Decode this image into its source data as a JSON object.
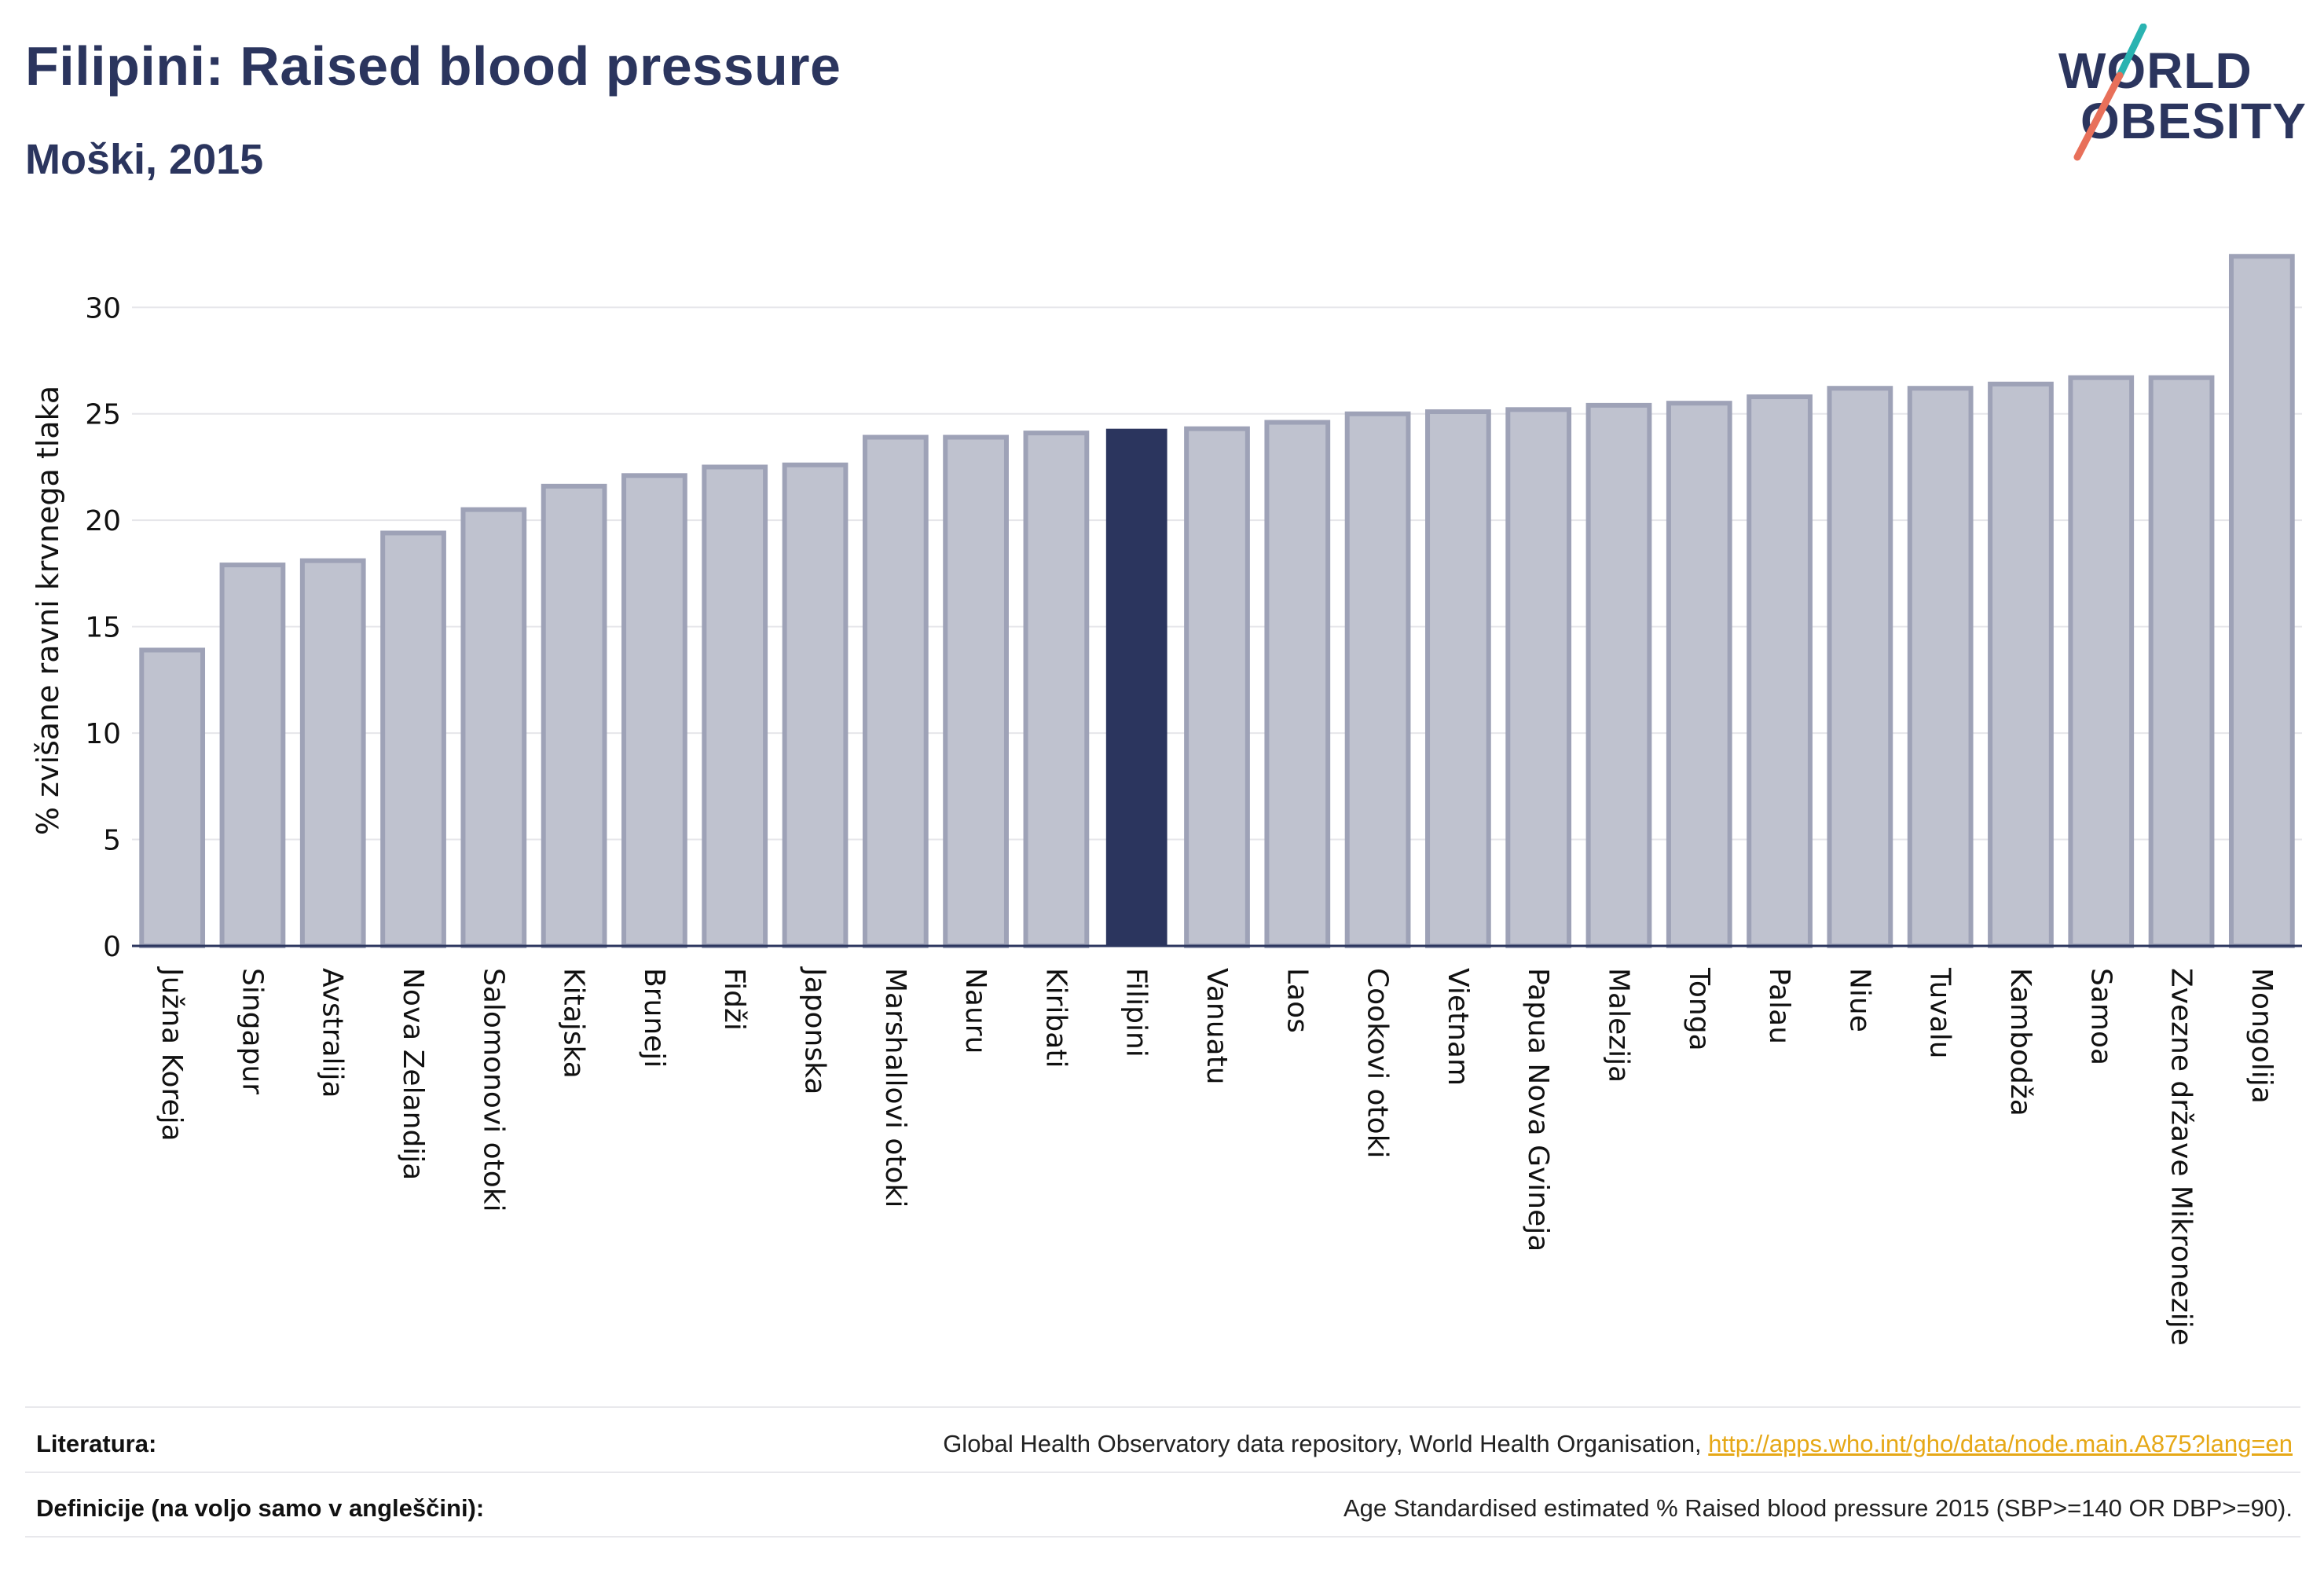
{
  "header": {
    "title": "Filipini: Raised blood pressure",
    "subtitle": "Moški, 2015"
  },
  "logo": {
    "line1": "WORLD",
    "line2": "OBESITY",
    "colors": {
      "text": "#2b355e",
      "slash_top": "#2ab3b1",
      "slash_bottom": "#e8705a"
    }
  },
  "chart_data": {
    "type": "bar",
    "ylabel": "% zvišane ravni krvnega tlaka",
    "xlabel": "",
    "ylim": [
      0,
      33
    ],
    "yticks": [
      0,
      5,
      10,
      15,
      20,
      25,
      30
    ],
    "grid": true,
    "highlight": "Filipini",
    "colors": {
      "bar": "#bfc2cf",
      "bar_border": "#9ea2b7",
      "highlight": "#2b355e",
      "axis": "#2b355e",
      "grid": "#e6e6ea"
    },
    "categories": [
      "Južna Koreja",
      "Singapur",
      "Avstralija",
      "Nova Zelandija",
      "Salomonovi otoki",
      "Kitajska",
      "Bruneji",
      "Fidži",
      "Japonska",
      "Marshallovi otoki",
      "Nauru",
      "Kiribati",
      "Filipini",
      "Vanuatu",
      "Laos",
      "Cookovi otoki",
      "Vietnam",
      "Papua Nova Gvineja",
      "Malezija",
      "Tonga",
      "Palau",
      "Niue",
      "Tuvalu",
      "Kambodža",
      "Samoa",
      "Zvezne države Mikronezije",
      "Mongolija"
    ],
    "values": [
      13.9,
      17.9,
      18.1,
      19.4,
      20.5,
      21.6,
      22.1,
      22.5,
      22.6,
      23.9,
      23.9,
      24.1,
      24.3,
      24.3,
      24.6,
      25.0,
      25.1,
      25.2,
      25.4,
      25.5,
      25.8,
      26.2,
      26.2,
      26.4,
      26.7,
      26.7,
      32.4
    ]
  },
  "footer": {
    "literature_label": "Literatura:",
    "literature_text": "Global Health Observatory data repository, World Health Organisation, ",
    "literature_link": "http://apps.who.int/gho/data/node.main.A875?lang=en",
    "definitions_label": "Definicije (na voljo samo v angleščini):",
    "definitions_text": "Age Standardised estimated % Raised blood pressure 2015 (SBP>=140 OR DBP>=90)."
  }
}
